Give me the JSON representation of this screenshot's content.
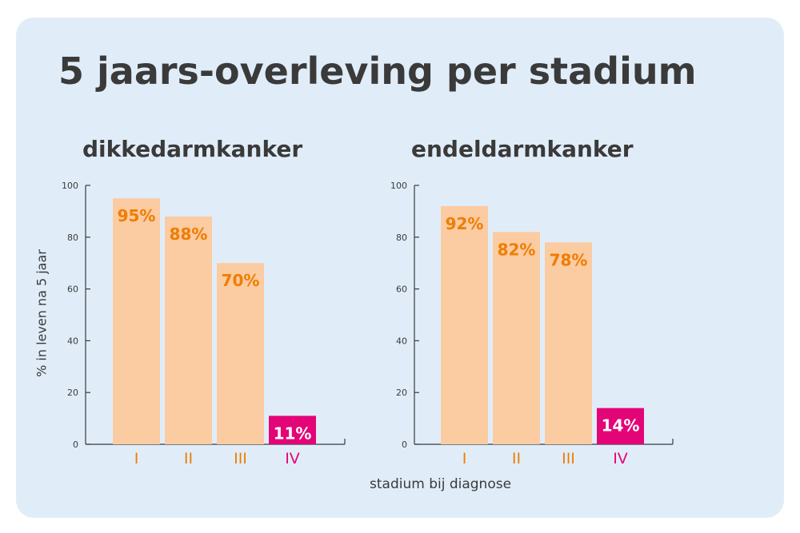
{
  "title": "5 jaars-overleving per stadium",
  "ylabel": "% in leven na 5 jaar",
  "xlabel": "stadium bij diagnose",
  "colors": {
    "bar": "#fbcba1",
    "highlight": "#e30577",
    "label": "#ef7d00",
    "axis": "#3a3a3a"
  },
  "chart_data": [
    {
      "type": "bar",
      "title": "dikkedarmkanker",
      "categories": [
        "I",
        "II",
        "III",
        "IV"
      ],
      "values": [
        95,
        88,
        70,
        11
      ],
      "value_labels": [
        "95%",
        "88%",
        "70%",
        "11%"
      ],
      "highlight_index": 3,
      "ylim": [
        0,
        100
      ],
      "yticks": [
        "0",
        "20",
        "40",
        "60",
        "80",
        "100"
      ],
      "grid": false
    },
    {
      "type": "bar",
      "title": "endeldarmkanker",
      "categories": [
        "I",
        "II",
        "III",
        "IV"
      ],
      "values": [
        92,
        82,
        78,
        14
      ],
      "value_labels": [
        "92%",
        "82%",
        "78%",
        "14%"
      ],
      "highlight_index": 3,
      "ylim": [
        0,
        100
      ],
      "yticks": [
        "0",
        "20",
        "40",
        "60",
        "80",
        "100"
      ],
      "grid": false
    }
  ]
}
